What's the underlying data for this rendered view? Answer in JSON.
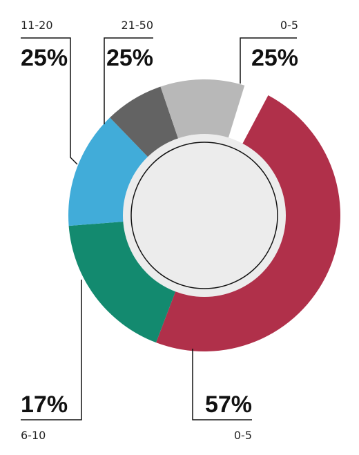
{
  "chart_data": {
    "type": "pie",
    "variant": "donut",
    "slices": [
      {
        "category": "0-5",
        "label": "25%",
        "fraction": 0.48,
        "color": "#b0304a"
      },
      {
        "category": "0-5",
        "label": "57%",
        "fraction": 0.18,
        "color": "#138a6f"
      },
      {
        "category": "6-10",
        "label": "17%",
        "fraction": 0.14,
        "color": "#41acd9"
      },
      {
        "category": "11-20",
        "label": "25%",
        "fraction": 0.07,
        "color": "#636363"
      },
      {
        "category": "21-50",
        "label": "25%",
        "fraction": 0.1,
        "color": "#b8b8b8"
      }
    ],
    "center_color": "#ececec",
    "legend": "none"
  }
}
